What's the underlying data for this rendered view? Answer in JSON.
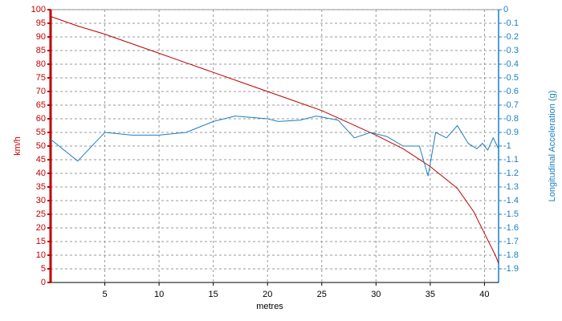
{
  "chart_data": {
    "type": "line",
    "x_label": "metres",
    "y_label": "km/h",
    "y2_label": "Longitudinal Acceleration (g)",
    "xlim": [
      0,
      41.3
    ],
    "xticks": [
      5,
      10,
      15,
      20,
      25,
      30,
      35,
      40
    ],
    "ylim": [
      0,
      100
    ],
    "yticks": [
      0,
      5,
      10,
      15,
      20,
      25,
      30,
      35,
      40,
      45,
      50,
      55,
      60,
      65,
      70,
      75,
      80,
      85,
      90,
      95,
      100
    ],
    "y2lim": [
      -2,
      0
    ],
    "y2ticks": [
      0,
      -0.1,
      -0.2,
      -0.3,
      -0.4,
      -0.5,
      -0.6,
      -0.7,
      -0.8,
      -0.9,
      -1,
      -1.1,
      -1.2,
      -1.3,
      -1.4,
      -1.5,
      -1.6,
      -1.7,
      -1.8,
      -1.9
    ],
    "grid": true,
    "series": [
      {
        "name": "Speed",
        "color": "#c00000",
        "x": [
          0,
          2.5,
          5,
          7.5,
          10,
          12.5,
          15,
          17.5,
          20,
          22.5,
          25,
          27.5,
          30,
          32.5,
          35,
          37.5,
          39,
          40,
          41,
          41.3
        ],
        "values": [
          97.5,
          94,
          91,
          87.5,
          84,
          80.5,
          77,
          73.5,
          70,
          66.5,
          63,
          58.5,
          54,
          49,
          42.5,
          34.5,
          26,
          18,
          10,
          7
        ]
      },
      {
        "name": "Longitudinal Acceleration",
        "color": "#1a7fc0",
        "axis": "y2",
        "x": [
          0,
          2.5,
          5,
          7.5,
          10,
          12.5,
          15,
          17,
          20,
          21,
          23,
          24.5,
          26.5,
          28,
          29.5,
          31,
          32.5,
          34,
          34.8,
          35.5,
          36.5,
          37.5,
          38.5,
          39.3,
          39.8,
          40.3,
          40.8,
          41.3
        ],
        "values": [
          -0.95,
          -1.11,
          -0.9,
          -0.92,
          -0.92,
          -0.9,
          -0.82,
          -0.78,
          -0.8,
          -0.82,
          -0.81,
          -0.78,
          -0.81,
          -0.94,
          -0.9,
          -0.93,
          -1.0,
          -1.0,
          -1.22,
          -0.9,
          -0.94,
          -0.85,
          -0.98,
          -1.02,
          -0.98,
          -1.03,
          -0.94,
          -1.02
        ]
      }
    ]
  }
}
